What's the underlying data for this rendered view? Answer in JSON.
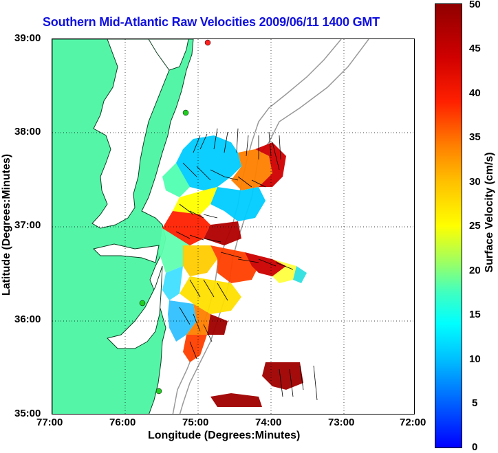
{
  "title": "Southern Mid-Atlantic Raw Velocities 2009/06/11 1400 GMT",
  "x_axis_title": "Longitude (Degrees:Minutes)",
  "y_axis_title": "Latitude (Degrees:Minutes)",
  "x_ticks": [
    "77:00",
    "76:00",
    "75:00",
    "74:00",
    "73:00",
    "72:00"
  ],
  "y_ticks": [
    "39:00",
    "38:00",
    "37:00",
    "36:00",
    "35:00"
  ],
  "colorbar": {
    "title": "Surface Velocity (cm/s)",
    "ticks": [
      "50",
      "45",
      "40",
      "35",
      "30",
      "25",
      "20",
      "15",
      "10",
      "5",
      "0"
    ],
    "min": 0,
    "max": 50
  },
  "colors": {
    "land": "#55f5a8",
    "title": "#1010e0",
    "station": "#22cc22",
    "station_alt": "#ff2020"
  }
}
